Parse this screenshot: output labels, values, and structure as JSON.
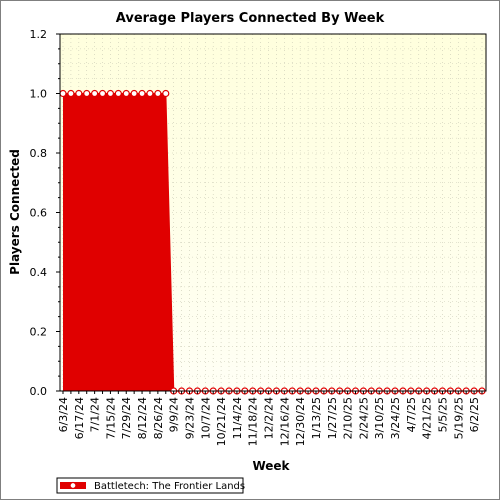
{
  "chart_data": {
    "type": "area",
    "title": "Average Players Connected By Week",
    "xlabel": "Week",
    "ylabel": "Players Connected",
    "ylim": [
      0,
      1.2
    ],
    "yticks": [
      "0.0",
      "0.2",
      "0.4",
      "0.6",
      "0.8",
      "1.0",
      "1.2"
    ],
    "ytick_values": [
      0,
      0.2,
      0.4,
      0.6,
      0.8,
      1.0,
      1.2
    ],
    "grid": true,
    "legend_position": "bottom-left",
    "x_tick_labels": [
      "6/3/24",
      "6/17/24",
      "7/1/24",
      "7/15/24",
      "7/29/24",
      "8/12/24",
      "8/26/24",
      "9/9/24",
      "9/23/24",
      "10/7/24",
      "10/21/24",
      "11/4/24",
      "11/18/24",
      "12/2/24",
      "12/16/24",
      "12/30/24",
      "1/13/25",
      "1/27/25",
      "2/10/25",
      "2/24/25",
      "3/10/25",
      "3/24/25",
      "4/7/25",
      "4/21/25",
      "5/5/25",
      "5/19/25",
      "6/2/25"
    ],
    "series": [
      {
        "name": "Battletech: The Frontier Lands",
        "color": "#e00000",
        "values": [
          1,
          1,
          1,
          1,
          1,
          1,
          1,
          1,
          1,
          1,
          1,
          1,
          1,
          1,
          0,
          0,
          0,
          0,
          0,
          0,
          0,
          0,
          0,
          0,
          0,
          0,
          0,
          0,
          0,
          0,
          0,
          0,
          0,
          0,
          0,
          0,
          0,
          0,
          0,
          0,
          0,
          0,
          0,
          0,
          0,
          0,
          0,
          0,
          0,
          0,
          0,
          0,
          0,
          0
        ]
      }
    ]
  },
  "colors": {
    "plot_background_top": "#ffffdd",
    "plot_background_bottom": "#fffff5",
    "series": "#e00000"
  }
}
